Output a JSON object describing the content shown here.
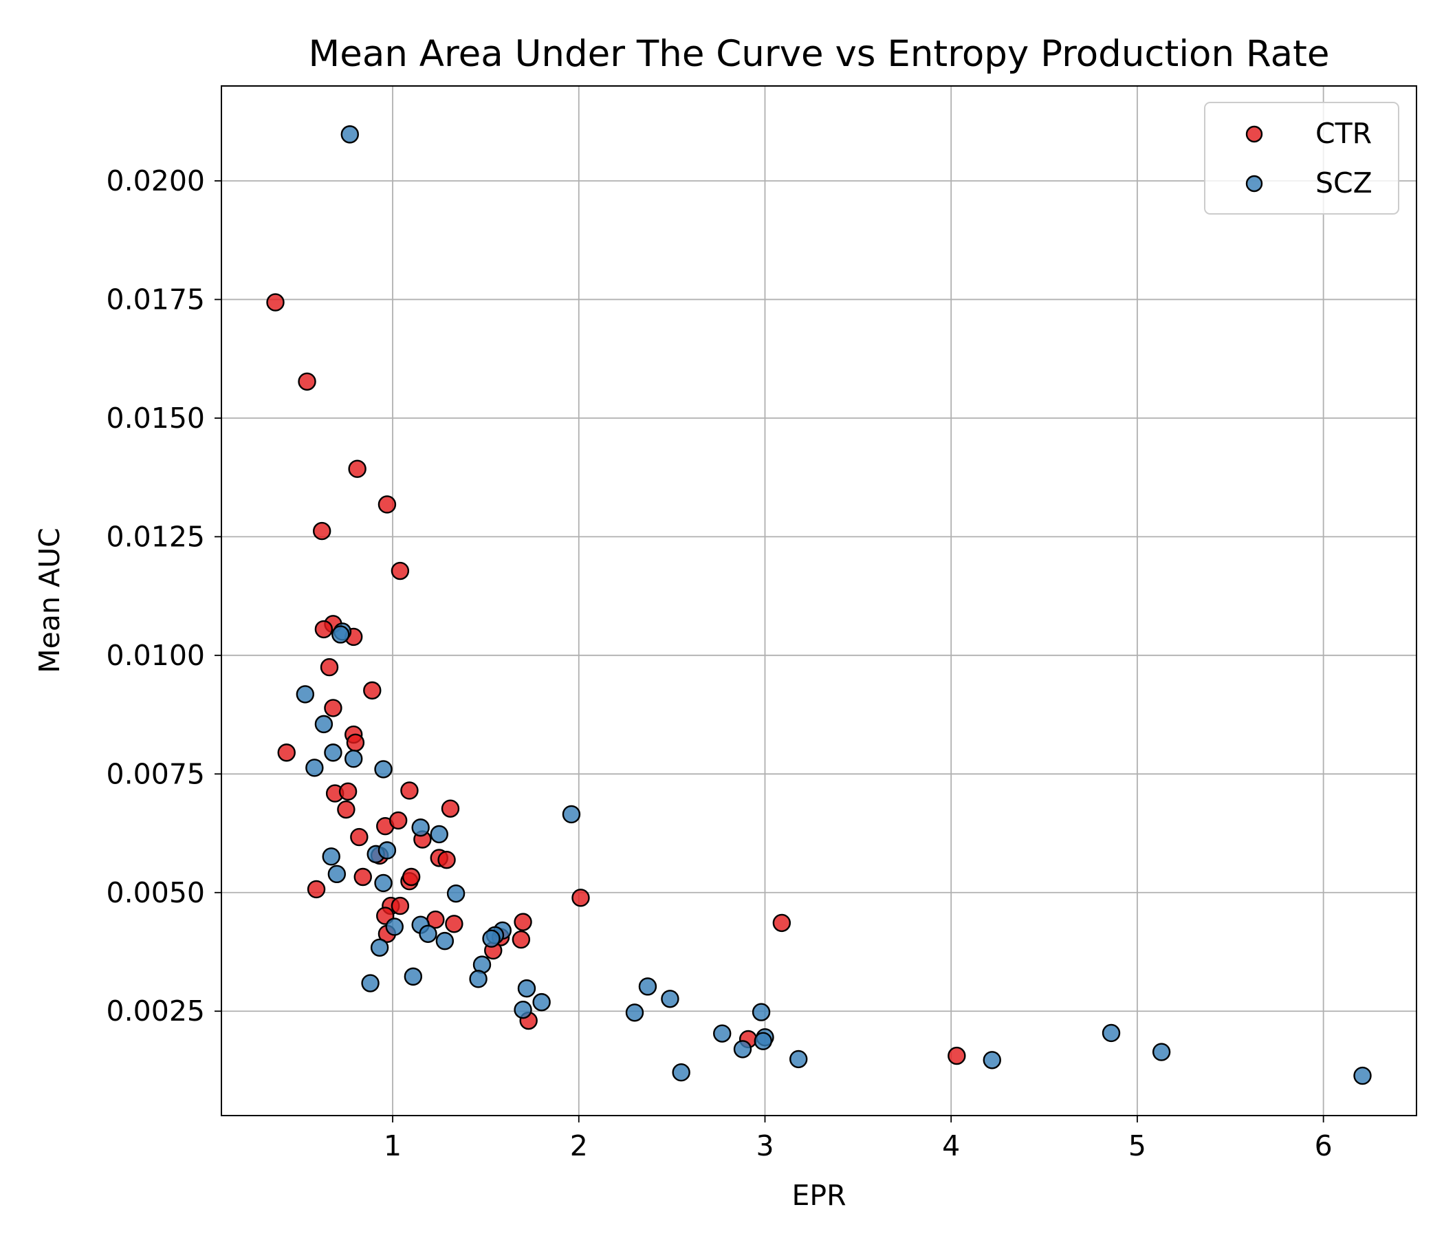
{
  "chart_data": {
    "type": "scatter",
    "title": "Mean Area Under The Curve vs Entropy Production Rate",
    "xlabel": "EPR",
    "ylabel": "Mean AUC",
    "xlim": [
      0.08,
      6.5
    ],
    "ylim": [
      0.0003,
      0.022
    ],
    "xticks": [
      1,
      2,
      3,
      4,
      5,
      6
    ],
    "xtick_labels": [
      "1",
      "2",
      "3",
      "4",
      "5",
      "6"
    ],
    "yticks": [
      0.0025,
      0.005,
      0.0075,
      0.01,
      0.0125,
      0.015,
      0.0175,
      0.02
    ],
    "ytick_labels": [
      "0.0025",
      "0.0050",
      "0.0075",
      "0.0100",
      "0.0125",
      "0.0150",
      "0.0175",
      "0.0200"
    ],
    "grid": true,
    "legend_position": "top-right",
    "series": [
      {
        "name": "CTR",
        "color": "#e41a1c",
        "points": [
          [
            0.37,
            0.01744
          ],
          [
            0.54,
            0.01577
          ],
          [
            0.81,
            0.01393
          ],
          [
            0.97,
            0.01318
          ],
          [
            0.62,
            0.01262
          ],
          [
            1.04,
            0.01178
          ],
          [
            0.68,
            0.01066
          ],
          [
            0.63,
            0.01055
          ],
          [
            0.79,
            0.01039
          ],
          [
            0.66,
            0.00975
          ],
          [
            0.89,
            0.00926
          ],
          [
            0.68,
            0.00889
          ],
          [
            0.79,
            0.00833
          ],
          [
            0.8,
            0.00816
          ],
          [
            0.43,
            0.00795
          ],
          [
            0.69,
            0.00709
          ],
          [
            0.76,
            0.00713
          ],
          [
            1.09,
            0.00715
          ],
          [
            0.75,
            0.00675
          ],
          [
            1.31,
            0.00677
          ],
          [
            0.96,
            0.0064
          ],
          [
            1.03,
            0.00652
          ],
          [
            0.82,
            0.00617
          ],
          [
            1.16,
            0.00612
          ],
          [
            1.25,
            0.00573
          ],
          [
            1.29,
            0.00569
          ],
          [
            0.93,
            0.00578
          ],
          [
            0.84,
            0.00533
          ],
          [
            1.09,
            0.00524
          ],
          [
            1.1,
            0.00533
          ],
          [
            0.59,
            0.00507
          ],
          [
            2.01,
            0.00489
          ],
          [
            0.99,
            0.00472
          ],
          [
            1.04,
            0.00472
          ],
          [
            0.96,
            0.00451
          ],
          [
            1.23,
            0.00443
          ],
          [
            1.33,
            0.00434
          ],
          [
            1.7,
            0.00438
          ],
          [
            3.09,
            0.00436
          ],
          [
            0.97,
            0.00413
          ],
          [
            1.58,
            0.00406
          ],
          [
            1.69,
            0.00401
          ],
          [
            1.54,
            0.00378
          ],
          [
            1.73,
            0.0023
          ],
          [
            2.91,
            0.00191
          ],
          [
            4.03,
            0.00156
          ]
        ]
      },
      {
        "name": "SCZ",
        "color": "#377eb8",
        "points": [
          [
            0.77,
            0.02098
          ],
          [
            0.73,
            0.0105
          ],
          [
            0.72,
            0.01044
          ],
          [
            0.53,
            0.00918
          ],
          [
            0.63,
            0.00855
          ],
          [
            0.68,
            0.00795
          ],
          [
            0.79,
            0.00782
          ],
          [
            0.58,
            0.00763
          ],
          [
            0.95,
            0.0076
          ],
          [
            1.96,
            0.00665
          ],
          [
            1.15,
            0.00637
          ],
          [
            1.25,
            0.00623
          ],
          [
            0.91,
            0.00581
          ],
          [
            0.97,
            0.00589
          ],
          [
            0.67,
            0.00576
          ],
          [
            0.7,
            0.00539
          ],
          [
            0.95,
            0.0052
          ],
          [
            1.34,
            0.00498
          ],
          [
            1.15,
            0.00432
          ],
          [
            1.01,
            0.00428
          ],
          [
            1.19,
            0.00413
          ],
          [
            1.59,
            0.0042
          ],
          [
            1.55,
            0.0041
          ],
          [
            1.53,
            0.00403
          ],
          [
            1.28,
            0.00398
          ],
          [
            0.93,
            0.00384
          ],
          [
            1.48,
            0.00348
          ],
          [
            1.11,
            0.00323
          ],
          [
            1.46,
            0.00318
          ],
          [
            0.88,
            0.00309
          ],
          [
            2.37,
            0.00302
          ],
          [
            1.72,
            0.00298
          ],
          [
            1.8,
            0.00269
          ],
          [
            2.49,
            0.00276
          ],
          [
            1.7,
            0.00253
          ],
          [
            2.3,
            0.00247
          ],
          [
            2.98,
            0.00248
          ],
          [
            2.77,
            0.00203
          ],
          [
            3.0,
            0.00195
          ],
          [
            2.99,
            0.00187
          ],
          [
            2.88,
            0.0017
          ],
          [
            3.18,
            0.00149
          ],
          [
            2.55,
            0.00121
          ],
          [
            4.86,
            0.00204
          ],
          [
            5.13,
            0.00164
          ],
          [
            4.22,
            0.00147
          ],
          [
            6.21,
            0.00114
          ]
        ]
      }
    ]
  }
}
